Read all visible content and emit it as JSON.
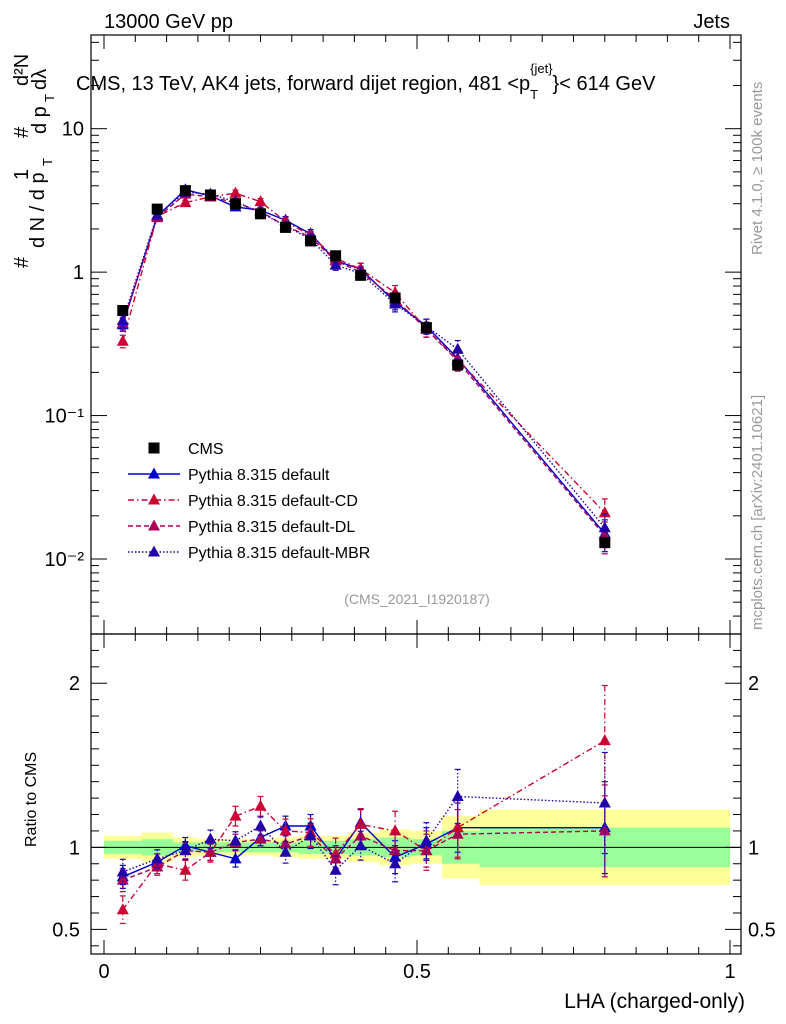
{
  "header": {
    "energy": "13000 GeV pp",
    "category": "Jets",
    "title": "CMS, 13 TeV, AK4 jets, forward dijet region, 481 <p",
    "title_sup": "{jet}",
    "title_sub": "T",
    "title_end": "}< 614 GeV"
  },
  "side_labels": {
    "rivet": "Rivet 4.1.0, ≥ 100k events",
    "mcplots": "mcplots.cern.ch [arXiv:2401.10621]"
  },
  "analysis_id": "(CMS_2021_I1920187)",
  "ylabel_main": {
    "hash": "#",
    "one": "1",
    "dN": "d N / d p",
    "T": "T",
    "hash2": "#",
    "d2N": "d²N",
    "dpT": "d p",
    "dlambda": "dλ"
  },
  "ylabel_ratio": "Ratio to CMS",
  "xlabel": "LHA (charged-only)",
  "colors": {
    "data": "#000000",
    "default": "#0000cc",
    "cd": "#cc0033",
    "dl": "#aa0055",
    "mbr": "#2200aa",
    "band_inner": "#99ff99",
    "band_outer": "#ffff99"
  },
  "chart_data": [
    {
      "type": "scatter",
      "panel": "main",
      "yscale": "log",
      "ylim": [
        0.003,
        45
      ],
      "xlim": [
        -0.02,
        1.0
      ],
      "ytick_labels": [
        "10⁻²",
        "10⁻¹",
        "1",
        "10"
      ],
      "ytick_values": [
        0.01,
        0.1,
        1,
        10
      ],
      "x": [
        0.03,
        0.085,
        0.13,
        0.17,
        0.21,
        0.25,
        0.29,
        0.33,
        0.37,
        0.41,
        0.465,
        0.515,
        0.565,
        0.8
      ],
      "series": [
        {
          "name": "CMS",
          "style": "data",
          "values": [
            0.54,
            2.75,
            3.7,
            3.45,
            3.0,
            2.55,
            2.05,
            1.65,
            1.3,
            0.95,
            0.66,
            0.41,
            0.225,
            0.013
          ]
        },
        {
          "name": "Pythia 8.315 default",
          "style": "default",
          "values": [
            0.43,
            2.45,
            3.75,
            3.4,
            2.85,
            2.7,
            2.3,
            1.85,
            1.2,
            1.05,
            0.62,
            0.42,
            0.25,
            0.015
          ]
        },
        {
          "name": "Pythia 8.315 default-CD",
          "style": "cd",
          "values": [
            0.33,
            2.45,
            3.05,
            3.35,
            3.55,
            3.1,
            2.25,
            1.8,
            1.25,
            1.05,
            0.72,
            0.4,
            0.245,
            0.021
          ]
        },
        {
          "name": "Pythia 8.315 default-DL",
          "style": "dl",
          "values": [
            0.44,
            2.4,
            3.5,
            3.35,
            3.05,
            2.65,
            2.1,
            1.75,
            1.2,
            1.0,
            0.65,
            0.4,
            0.24,
            0.0145
          ]
        },
        {
          "name": "Pythia 8.315 default-MBR",
          "style": "mbr",
          "values": [
            0.46,
            2.5,
            3.6,
            3.5,
            3.1,
            2.6,
            2.1,
            1.7,
            1.12,
            0.98,
            0.6,
            0.42,
            0.29,
            0.0165
          ]
        }
      ],
      "legend": [
        "CMS",
        "Pythia 8.315 default",
        "Pythia 8.315 default-CD",
        "Pythia 8.315 default-DL",
        "Pythia 8.315 default-MBR"
      ]
    },
    {
      "type": "scatter",
      "panel": "ratio",
      "ylim": [
        0.35,
        2.3
      ],
      "xlim": [
        -0.02,
        1.0
      ],
      "yticks": [
        0.5,
        1,
        2
      ],
      "ytick_labels": [
        "0.5",
        "1",
        "2"
      ],
      "xticks": [
        0,
        0.5,
        1
      ],
      "xtick_labels": [
        "0",
        "0.5",
        "1"
      ],
      "x": [
        0.03,
        0.085,
        0.13,
        0.17,
        0.21,
        0.25,
        0.29,
        0.33,
        0.37,
        0.41,
        0.465,
        0.515,
        0.565,
        0.8
      ],
      "bands": {
        "edges": [
          0,
          0.06,
          0.11,
          0.15,
          0.19,
          0.23,
          0.27,
          0.31,
          0.35,
          0.39,
          0.44,
          0.49,
          0.54,
          0.6,
          1.0
        ],
        "inner": [
          0.04,
          0.05,
          0.03,
          0.03,
          0.03,
          0.03,
          0.03,
          0.04,
          0.04,
          0.05,
          0.06,
          0.05,
          0.1,
          0.12
        ],
        "outer": [
          0.07,
          0.09,
          0.06,
          0.05,
          0.05,
          0.05,
          0.06,
          0.07,
          0.07,
          0.09,
          0.11,
          0.1,
          0.19,
          0.23
        ]
      },
      "series": [
        {
          "name": "Pythia 8.315 default",
          "style": "default",
          "values": [
            0.82,
            0.91,
            1.01,
            0.97,
            0.93,
            1.06,
            1.13,
            1.13,
            0.93,
            1.15,
            0.94,
            1.02,
            1.12,
            1.12
          ]
        },
        {
          "name": "Pythia 8.315 default-CD",
          "style": "cd",
          "values": [
            0.62,
            0.9,
            0.86,
            0.97,
            1.19,
            1.25,
            1.1,
            1.09,
            0.96,
            1.14,
            1.1,
            0.98,
            1.12,
            1.65
          ]
        },
        {
          "name": "Pythia 8.315 default-DL",
          "style": "dl",
          "values": [
            0.8,
            0.88,
            0.98,
            0.97,
            1.03,
            1.05,
            1.02,
            1.07,
            0.93,
            1.07,
            0.98,
            0.98,
            1.08,
            1.1
          ]
        },
        {
          "name": "Pythia 8.315 default-MBR",
          "style": "mbr",
          "values": [
            0.85,
            0.93,
            0.98,
            1.05,
            1.04,
            1.13,
            0.97,
            1.07,
            0.86,
            1.01,
            0.9,
            1.04,
            1.31,
            1.27
          ]
        }
      ]
    }
  ]
}
